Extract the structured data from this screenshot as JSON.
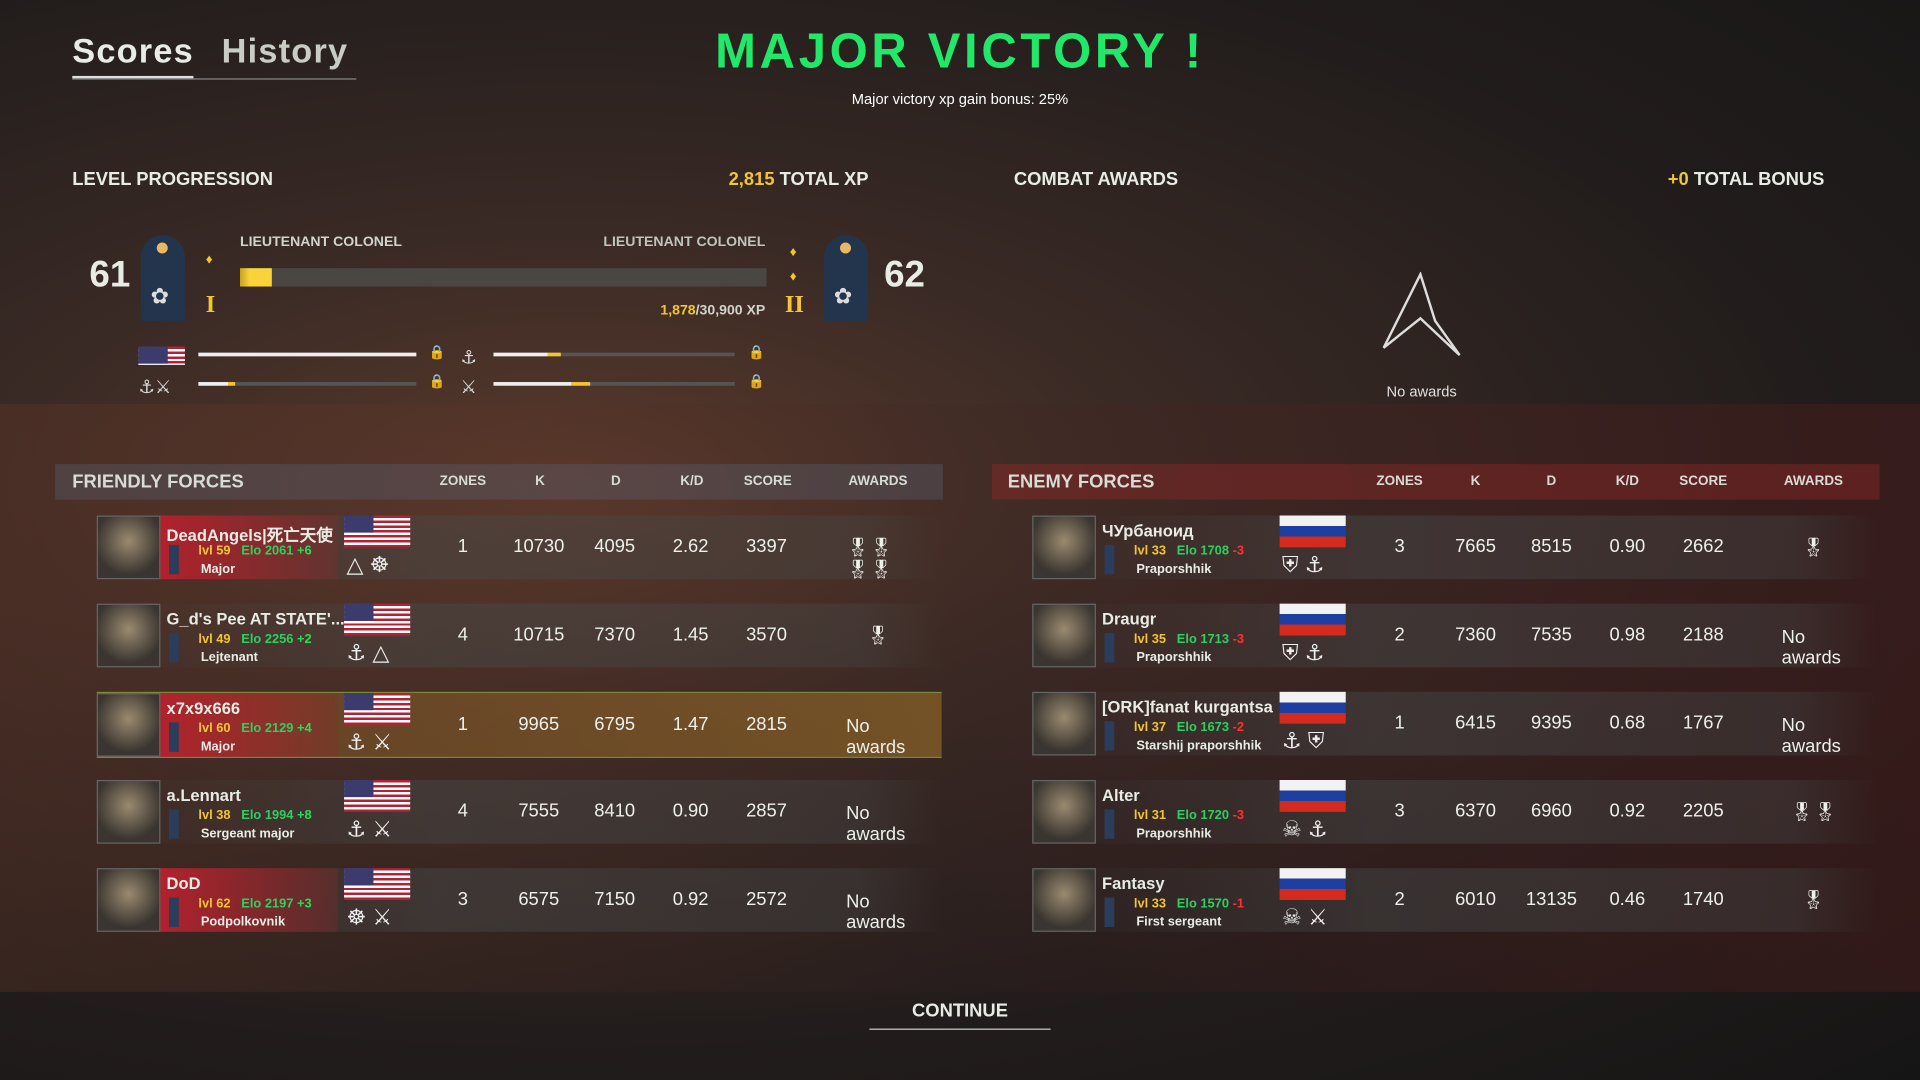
{
  "tabs": [
    {
      "label": "Scores",
      "active": true
    },
    {
      "label": "History",
      "active": false
    }
  ],
  "result": {
    "title": "MAJOR VICTORY !",
    "subtitle": "Major victory xp gain bonus: 25%",
    "color": "#22e86a"
  },
  "level": {
    "heading": "LEVEL PROGRESSION",
    "total_xp_value": "2,815",
    "total_xp_label": "TOTAL XP",
    "current_level": "61",
    "next_level": "62",
    "current_rank": "LIEUTENANT COLONEL",
    "next_rank": "LIEUTENANT COLONEL",
    "xp_current": "1,878",
    "xp_total": "/30,900 XP",
    "progress_fraction": 0.061,
    "current_rank_numeral": "I",
    "next_rank_numeral": "II",
    "sub_progress": [
      {
        "icon": "us-flag-icon",
        "fraction": 1.0
      },
      {
        "icon": "marines-emblem-icon",
        "fraction": 0.28
      },
      {
        "icon": "marines-cavalry-icon",
        "fraction": 0.17
      },
      {
        "icon": "cavalry-icon",
        "fraction": 0.4
      }
    ]
  },
  "awards": {
    "heading": "COMBAT AWARDS",
    "bonus_value": "+0",
    "bonus_label": "TOTAL BONUS",
    "empty_text": "No awards"
  },
  "friendly": {
    "heading": "FRIENDLY FORCES",
    "columns": [
      "ZONES",
      "K",
      "D",
      "K/D",
      "SCORE",
      "AWARDS"
    ],
    "rows": [
      {
        "name": "DeadAngels|死亡天使",
        "lvl": "lvl 59",
        "elo": "Elo 2061",
        "delta": "+6",
        "rank": "Major",
        "zones": "1",
        "k": "10730",
        "d": "4095",
        "kd": "2.62",
        "score": "3397",
        "awards": "🎖🎖🎖🎖",
        "insignia": "△ ☸"
      },
      {
        "name": "G_d's Pee AT STATE'...",
        "lvl": "lvl 49",
        "elo": "Elo 2256",
        "delta": "+2",
        "rank": "Lejtenant",
        "zones": "4",
        "k": "10715",
        "d": "7370",
        "kd": "1.45",
        "score": "3570",
        "awards": "🎖",
        "insignia": "⚓ △"
      },
      {
        "name": "x7x9x666",
        "lvl": "lvl 60",
        "elo": "Elo 2129",
        "delta": "+4",
        "rank": "Major",
        "zones": "1",
        "k": "9965",
        "d": "6795",
        "kd": "1.47",
        "score": "2815",
        "awards": "No awards",
        "insignia": "⚓ ⚔",
        "self": true
      },
      {
        "name": "a.Lennart",
        "lvl": "lvl 38",
        "elo": "Elo 1994",
        "delta": "+8",
        "rank": "Sergeant major",
        "zones": "4",
        "k": "7555",
        "d": "8410",
        "kd": "0.90",
        "score": "2857",
        "awards": "No awards",
        "insignia": "⚓ ⚔"
      },
      {
        "name": "DoD",
        "lvl": "lvl 62",
        "elo": "Elo 2197",
        "delta": "+3",
        "rank": "Podpolkovnik",
        "zones": "3",
        "k": "6575",
        "d": "7150",
        "kd": "0.92",
        "score": "2572",
        "awards": "No awards",
        "insignia": "☸ ⚔"
      }
    ]
  },
  "enemy": {
    "heading": "ENEMY FORCES",
    "columns": [
      "ZONES",
      "K",
      "D",
      "K/D",
      "SCORE",
      "AWARDS"
    ],
    "rows": [
      {
        "name": "ЧУрбаноид",
        "lvl": "lvl 33",
        "elo": "Elo 1708",
        "delta": "-3",
        "rank": "Praporshhik",
        "zones": "3",
        "k": "7665",
        "d": "8515",
        "kd": "0.90",
        "score": "2662",
        "awards": "🎖",
        "insignia": "⛨ ⚓"
      },
      {
        "name": "Draugr",
        "lvl": "lvl 35",
        "elo": "Elo 1713",
        "delta": "-3",
        "rank": "Praporshhik",
        "zones": "2",
        "k": "7360",
        "d": "7535",
        "kd": "0.98",
        "score": "2188",
        "awards": "No awards",
        "insignia": "⛨ ⚓"
      },
      {
        "name": "[ORK]fanat kurgantsa",
        "lvl": "lvl 37",
        "elo": "Elo 1673",
        "delta": "-2",
        "rank": "Starshij praporshhik",
        "zones": "1",
        "k": "6415",
        "d": "9395",
        "kd": "0.68",
        "score": "1767",
        "awards": "No awards",
        "insignia": "⚓ ⛨"
      },
      {
        "name": "Alter",
        "lvl": "lvl 31",
        "elo": "Elo 1720",
        "delta": "-3",
        "rank": "Praporshhik",
        "zones": "3",
        "k": "6370",
        "d": "6960",
        "kd": "0.92",
        "score": "2205",
        "awards": "🎖🎖",
        "insignia": "☠ ⚓"
      },
      {
        "name": "Fantasy",
        "lvl": "lvl 33",
        "elo": "Elo 1570",
        "delta": "-1",
        "rank": "First sergeant",
        "zones": "2",
        "k": "6010",
        "d": "13135",
        "kd": "0.46",
        "score": "1740",
        "awards": "🎖",
        "insignia": "☠ ⚔"
      }
    ]
  },
  "continue_label": "CONTINUE"
}
